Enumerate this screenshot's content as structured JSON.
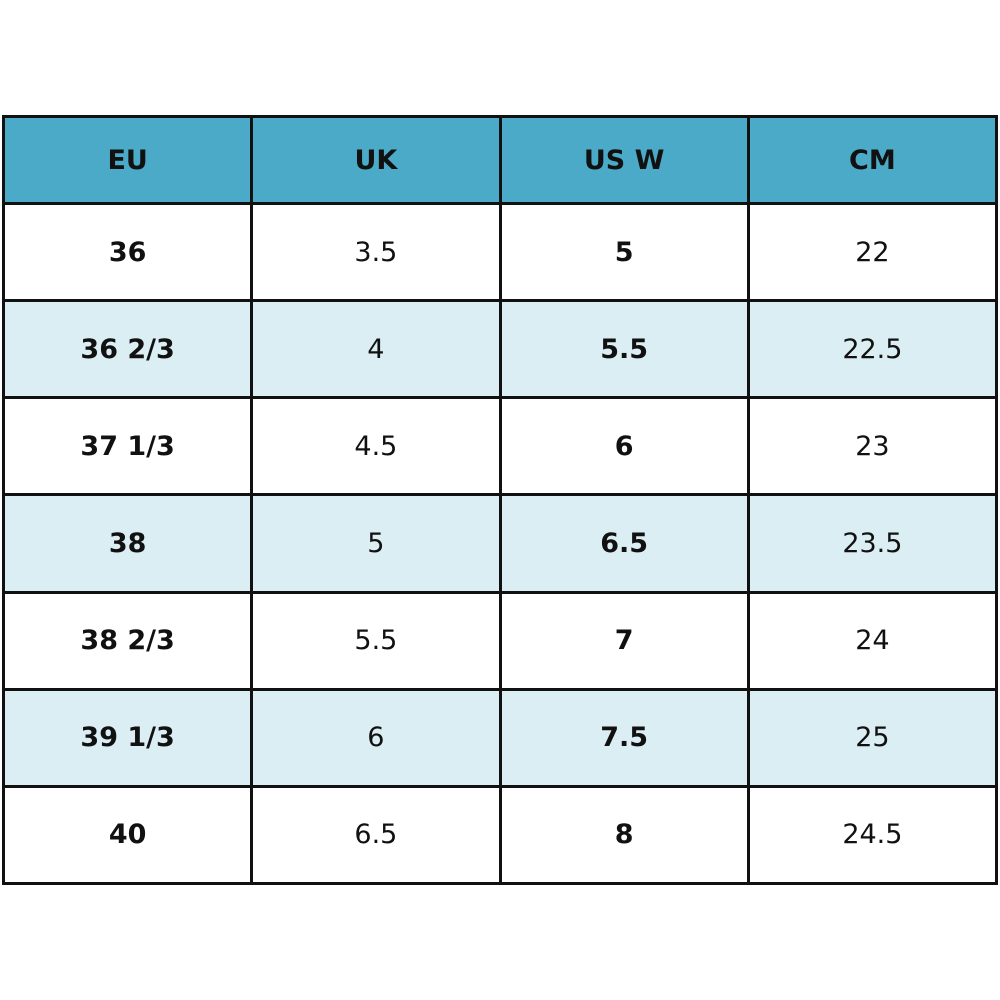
{
  "table": {
    "header": [
      "EU",
      "UK",
      "US W",
      "CM"
    ],
    "rows": [
      [
        "36",
        "3.5",
        "5",
        "22"
      ],
      [
        "36 2/3",
        "4",
        "5.5",
        "22.5"
      ],
      [
        "37 1/3",
        "4.5",
        "6",
        "23"
      ],
      [
        "38",
        "5",
        "6.5",
        "23.5"
      ],
      [
        "38 2/3",
        "5.5",
        "7",
        "24"
      ],
      [
        "39 1/3",
        "6",
        "7.5",
        "25"
      ],
      [
        "40",
        "6.5",
        "8",
        "24.5"
      ]
    ]
  }
}
